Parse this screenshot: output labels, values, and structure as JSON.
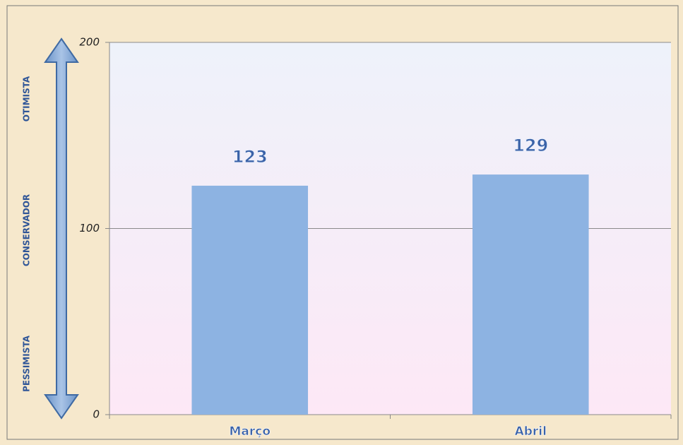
{
  "chart_data": {
    "type": "bar",
    "categories": [
      "Março",
      "Abril"
    ],
    "values": [
      123,
      129
    ],
    "color": "#8db3e2",
    "ylim": [
      0,
      200
    ],
    "yticks": [
      0,
      100,
      200
    ],
    "grid": true,
    "annotations": [
      "OTIMISTA",
      "CONSERVADOR",
      "PESSIMISTA"
    ]
  }
}
